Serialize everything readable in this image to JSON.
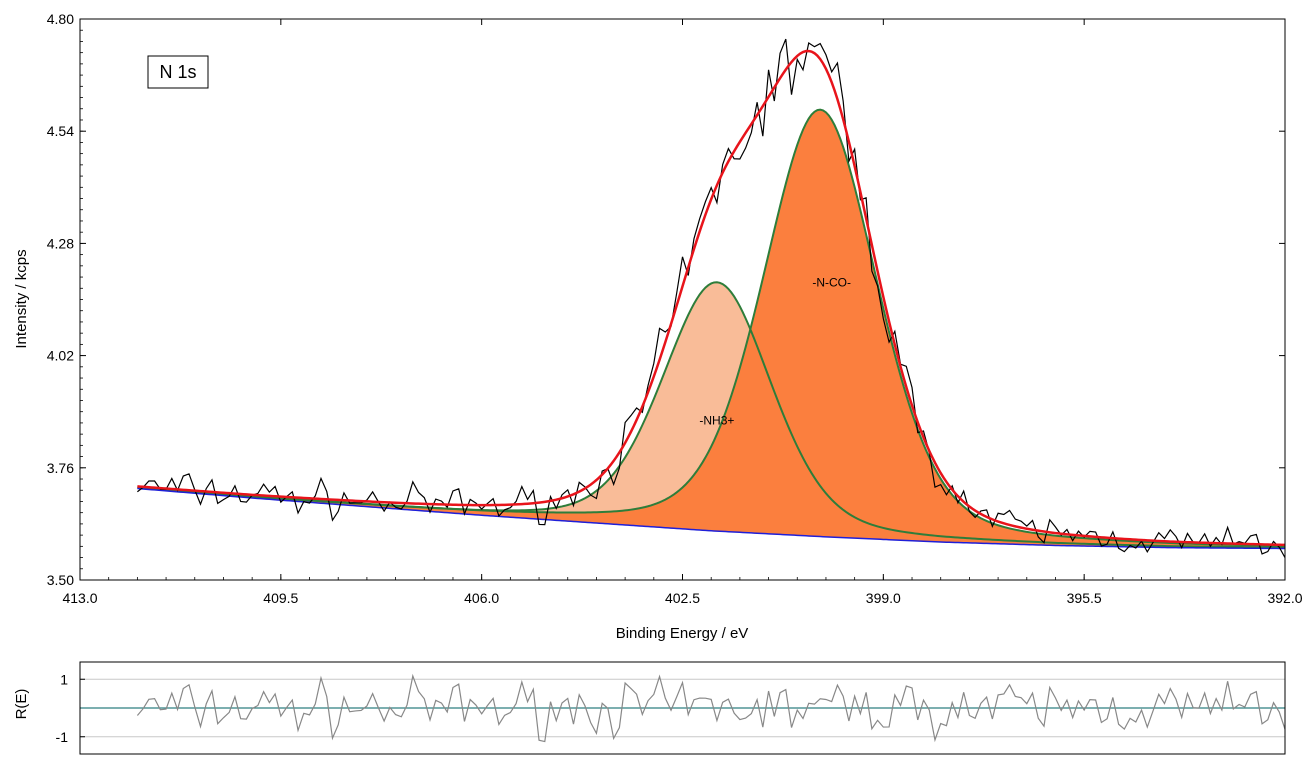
{
  "chart_data": [
    {
      "type": "line",
      "title": "",
      "annotation_box": "N 1s",
      "xlabel": "Binding Energy / eV",
      "ylabel": "Intensity / kcps",
      "xlim": [
        413.0,
        392.0
      ],
      "x_reversed": true,
      "ylim": [
        3.5,
        4.8
      ],
      "x_ticks": [
        "413.0",
        "409.5",
        "406.0",
        "402.5",
        "399.0",
        "395.5",
        "392.0"
      ],
      "y_ticks": [
        "3.50",
        "3.76",
        "4.02",
        "4.28",
        "4.54",
        "4.80"
      ],
      "grid": false,
      "background": {
        "name": "background",
        "color": "#1f1fd8",
        "points": [
          [
            412.0,
            3.712
          ],
          [
            410.0,
            3.69
          ],
          [
            408.0,
            3.67
          ],
          [
            406.0,
            3.65
          ],
          [
            404.0,
            3.632
          ],
          [
            402.0,
            3.614
          ],
          [
            400.0,
            3.6
          ],
          [
            398.0,
            3.588
          ],
          [
            396.0,
            3.58
          ],
          [
            394.0,
            3.575
          ],
          [
            392.0,
            3.573
          ]
        ]
      },
      "components": [
        {
          "label": "-NH3+",
          "center": 401.9,
          "height": 4.19,
          "fwhm": 2.25,
          "fill": "#f9bc98",
          "line": "#2e7d3a",
          "label_x": 401.9,
          "label_y": 3.86
        },
        {
          "label": "-N-CO-",
          "center": 400.1,
          "height": 4.59,
          "fwhm": 2.35,
          "fill": "#fb7f3e",
          "line": "#2e7d3a",
          "label_x": 399.9,
          "label_y": 4.18
        }
      ],
      "envelope": {
        "name": "envelope",
        "color": "#e8141b"
      },
      "raw_data": {
        "name": "raw",
        "color": "#000000"
      }
    },
    {
      "type": "line",
      "ylabel": "R(E)",
      "xlim": [
        413.0,
        392.0
      ],
      "x_reversed": true,
      "ylim": [
        -1.6,
        1.6
      ],
      "y_ticks": [
        "1",
        "-1"
      ],
      "grid": true,
      "residual_color": "#888888",
      "zero_line_color": "#2f7f80"
    }
  ]
}
